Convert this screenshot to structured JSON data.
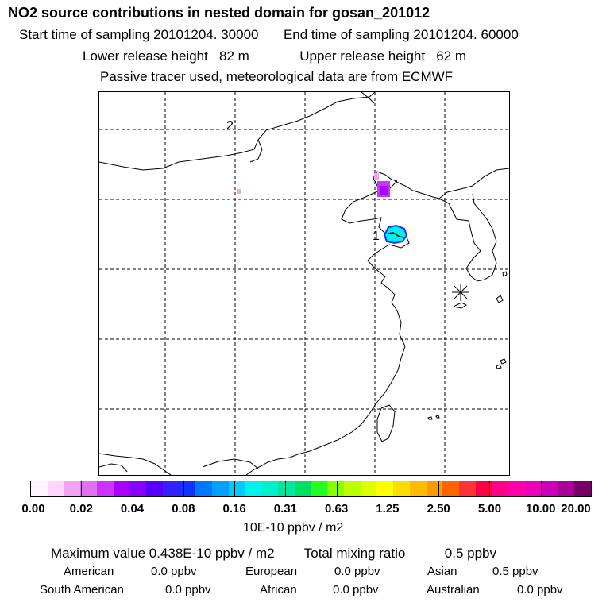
{
  "header": {
    "title": "NO2 source contributions in nested domain for gosan_201012",
    "start_time": "Start time of sampling 20101204. 30000",
    "end_time": "End time of sampling 20101204. 60000",
    "lower_release": "Lower release height   82 m",
    "upper_release": "Upper release height   62 m",
    "tracer_note": "Passive tracer used, meteorological data are from ECMWF"
  },
  "map": {
    "labels": {
      "source_1": "1",
      "source_2": "2"
    }
  },
  "colorbar": {
    "colors": [
      "#fff4ff",
      "#ffd4ff",
      "#f3a3f3",
      "#e070f0",
      "#cc33ff",
      "#aa00ff",
      "#8800ff",
      "#5500ff",
      "#3322ff",
      "#1133ff",
      "#0077ff",
      "#00a0ff",
      "#00ccff",
      "#00f2ee",
      "#00f0cc",
      "#00e8a0",
      "#00e060",
      "#22ff22",
      "#88ff00",
      "#bbff00",
      "#ddff00",
      "#ffff00",
      "#ffdd00",
      "#ffbb00",
      "#ff9900",
      "#ff6600",
      "#ff3333",
      "#ff0044",
      "#ff0088",
      "#ff00aa",
      "#ee00bb",
      "#cc00bb",
      "#aa0099",
      "#770066"
    ],
    "tick_labels": [
      "0.00",
      "0.02",
      "0.04",
      "0.08",
      "0.16",
      "0.31",
      "0.63",
      "1.25",
      "2.50",
      "5.00",
      "10.00",
      "20.00"
    ],
    "units": "10E-10 ppbv / m2"
  },
  "summary": {
    "max_value": "Maximum value  0.438E-10 ppbv / m2",
    "total_label": "Total mixing ratio",
    "total_value": "0.5 ppbv",
    "regions": [
      {
        "name": "American",
        "value": "0.0 ppbv"
      },
      {
        "name": "European",
        "value": "0.0 ppbv"
      },
      {
        "name": "Asian",
        "value": "0.5 ppbv"
      },
      {
        "name": "South American",
        "value": "0.0 ppbv"
      },
      {
        "name": "African",
        "value": "0.0 ppbv"
      },
      {
        "name": "Australian",
        "value": "0.0 ppbv"
      }
    ]
  }
}
